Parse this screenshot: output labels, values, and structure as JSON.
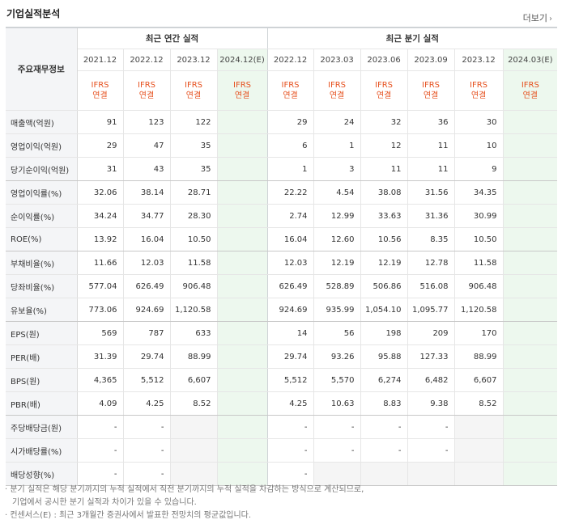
{
  "title": "기업실적분석",
  "more_label": "더보기",
  "header": {
    "rowhead": "주요재무정보",
    "annual_group": "최근 연간 실적",
    "quarter_group": "최근 분기 실적",
    "periods": [
      "2021.12",
      "2022.12",
      "2023.12",
      "2024.12(E)",
      "2022.12",
      "2023.03",
      "2023.06",
      "2023.09",
      "2023.12",
      "2024.03(E)"
    ],
    "std_line1": "IFRS",
    "std_line2": "연결"
  },
  "rows": [
    {
      "label": "매출액(억원)",
      "values": [
        "91",
        "123",
        "122",
        "",
        "29",
        "24",
        "32",
        "36",
        "30",
        ""
      ]
    },
    {
      "label": "영업이익(억원)",
      "values": [
        "29",
        "47",
        "35",
        "",
        "6",
        "1",
        "12",
        "11",
        "10",
        ""
      ]
    },
    {
      "label": "당기순이익(억원)",
      "values": [
        "31",
        "43",
        "35",
        "",
        "1",
        "3",
        "11",
        "11",
        "9",
        ""
      ]
    },
    {
      "label": "영업이익률(%)",
      "values": [
        "32.06",
        "38.14",
        "28.71",
        "",
        "22.22",
        "4.54",
        "38.08",
        "31.56",
        "34.35",
        ""
      ]
    },
    {
      "label": "순이익률(%)",
      "values": [
        "34.24",
        "34.77",
        "28.30",
        "",
        "2.74",
        "12.99",
        "33.63",
        "31.36",
        "30.99",
        ""
      ]
    },
    {
      "label": "ROE(%)",
      "values": [
        "13.92",
        "16.04",
        "10.50",
        "",
        "16.04",
        "12.60",
        "10.56",
        "8.35",
        "10.50",
        ""
      ]
    },
    {
      "label": "부채비율(%)",
      "values": [
        "11.66",
        "12.03",
        "11.58",
        "",
        "12.03",
        "12.19",
        "12.19",
        "12.78",
        "11.58",
        ""
      ]
    },
    {
      "label": "당좌비율(%)",
      "values": [
        "577.04",
        "626.49",
        "906.48",
        "",
        "626.49",
        "528.89",
        "506.86",
        "516.08",
        "906.48",
        ""
      ]
    },
    {
      "label": "유보율(%)",
      "values": [
        "773.06",
        "924.69",
        "1,120.58",
        "",
        "924.69",
        "935.99",
        "1,054.10",
        "1,095.77",
        "1,120.58",
        ""
      ]
    },
    {
      "label": "EPS(원)",
      "values": [
        "569",
        "787",
        "633",
        "",
        "14",
        "56",
        "198",
        "209",
        "170",
        ""
      ]
    },
    {
      "label": "PER(배)",
      "values": [
        "31.39",
        "29.74",
        "88.99",
        "",
        "29.74",
        "93.26",
        "95.88",
        "127.33",
        "88.99",
        ""
      ]
    },
    {
      "label": "BPS(원)",
      "values": [
        "4,365",
        "5,512",
        "6,607",
        "",
        "5,512",
        "5,570",
        "6,274",
        "6,482",
        "6,607",
        ""
      ]
    },
    {
      "label": "PBR(배)",
      "values": [
        "4.09",
        "4.25",
        "8.52",
        "",
        "4.25",
        "10.63",
        "8.83",
        "9.38",
        "8.52",
        ""
      ]
    },
    {
      "label": "주당배당금(원)",
      "values": [
        "-",
        "-",
        "",
        "",
        "-",
        "-",
        "-",
        "-",
        "",
        ""
      ]
    },
    {
      "label": "시가배당률(%)",
      "values": [
        "-",
        "-",
        "",
        "",
        "-",
        "-",
        "-",
        "-",
        "",
        ""
      ]
    },
    {
      "label": "배당성향(%)",
      "values": [
        "-",
        "-",
        "",
        "",
        "-",
        "",
        "",
        "",
        "",
        ""
      ]
    }
  ],
  "notes": {
    "line1": "분기 실적은 해당 분기까지의 누적 실적에서 직전 분기까지의 누적 실적을 차감하는 방식으로 계산되므로,",
    "line2": "기업에서 공시한 분기 실적과 차이가 있을 수 있습니다.",
    "line3": "컨센서스(E) : 최근 3개월간 증권사에서 발표한 전망치의 평균값입니다."
  },
  "colors": {
    "ifrs": "#e6501e",
    "estimate_bg": "#edf8ee",
    "label_bg": "#f4f5f7",
    "empty_bg": "#f5f5f5"
  }
}
